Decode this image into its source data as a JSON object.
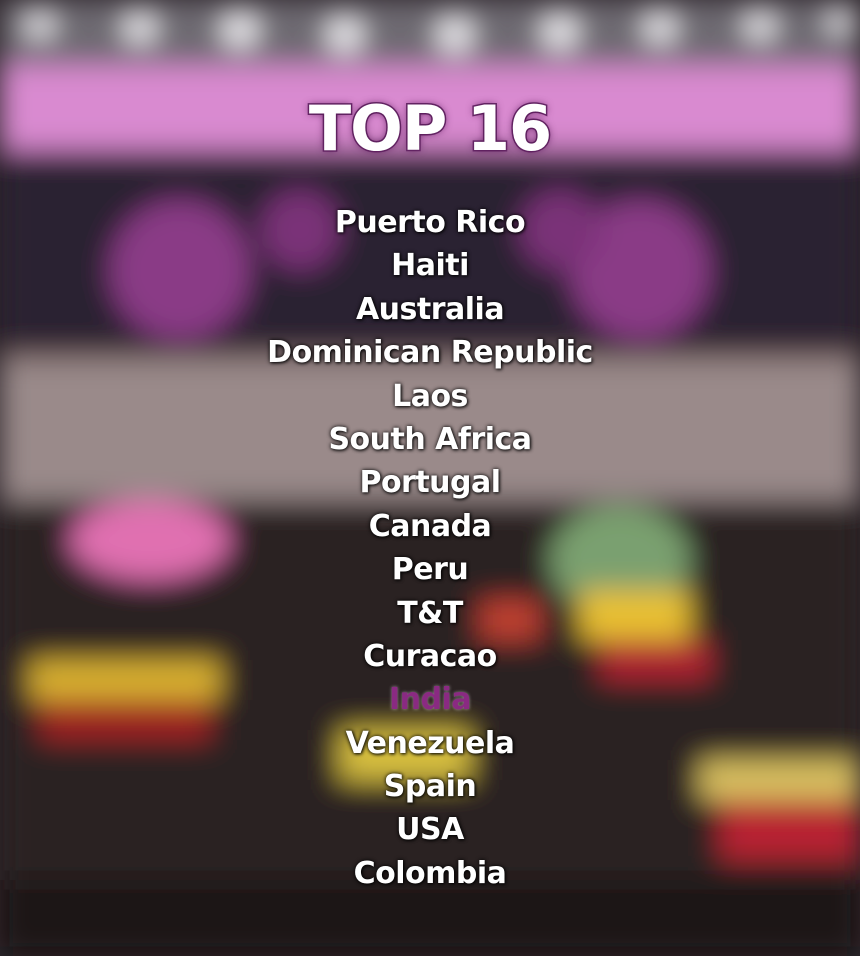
{
  "title": "TOP 16",
  "countries": [
    "Puerto Rico",
    "Haiti",
    "Australia",
    "Dominican Republic",
    "Laos",
    "South Africa",
    "Portugal",
    "Canada",
    "Peru",
    "T&T",
    "Curacao",
    "India",
    "Venezuela",
    "Spain",
    "USA",
    "Colombia"
  ]
}
